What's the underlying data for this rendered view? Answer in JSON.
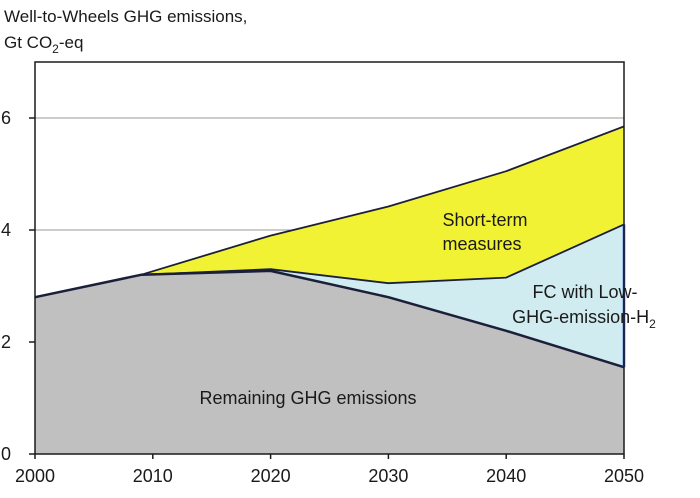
{
  "chart_data": {
    "type": "area",
    "title_line1": "Well-to-Wheels GHG emissions,",
    "title_line2_prefix": "Gt CO",
    "title_line2_sub": "2",
    "title_line2_suffix": "-eq",
    "xlim": [
      2000,
      2050
    ],
    "ylim": [
      0,
      7
    ],
    "xticks": [
      2000,
      2010,
      2020,
      2030,
      2040,
      2050
    ],
    "yticks": [
      0,
      2,
      4,
      6
    ],
    "grid": "horizontal",
    "series": [
      {
        "name": "Remaining GHG emissions",
        "color": "#c0c0c0",
        "x": [
          2000,
          2009,
          2020,
          2030,
          2040,
          2050
        ],
        "top": [
          2.8,
          3.2,
          3.27,
          2.8,
          2.2,
          1.55
        ]
      },
      {
        "name_line1": "FC with Low-",
        "name_line2_prefix": "GHG-emission-H",
        "name_line2_sub": "2",
        "color": "#d0ecf0",
        "x": [
          2009,
          2020,
          2030,
          2040,
          2050
        ],
        "bottom": [
          3.2,
          3.27,
          2.8,
          2.2,
          1.55
        ],
        "top": [
          3.2,
          3.3,
          3.05,
          3.15,
          4.1
        ]
      },
      {
        "name_line1": "Short-term",
        "name_line2": "measures",
        "color": "#f2f234",
        "x": [
          2009,
          2020,
          2030,
          2040,
          2050
        ],
        "bottom": [
          3.2,
          3.3,
          3.05,
          3.15,
          4.1
        ],
        "top": [
          3.2,
          3.9,
          4.42,
          5.05,
          5.85
        ]
      }
    ]
  }
}
